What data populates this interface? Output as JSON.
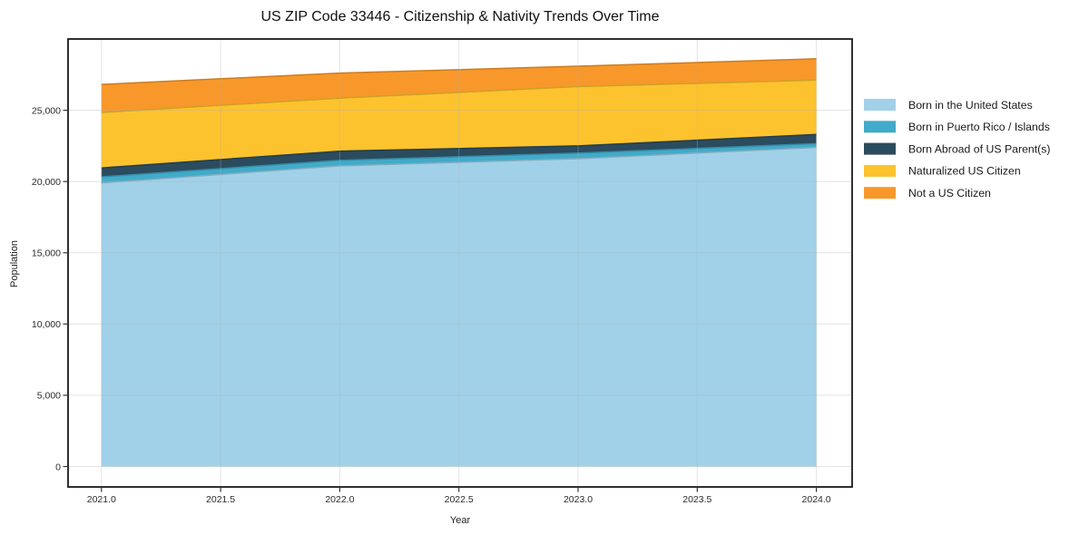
{
  "chart_data": {
    "type": "area",
    "stacked": true,
    "title": "US ZIP Code 33446 - Citizenship & Nativity Trends Over Time",
    "xlabel": "Year",
    "ylabel": "Population",
    "x": [
      2021,
      2022,
      2023,
      2024
    ],
    "series": [
      {
        "name": "Born in the United States",
        "color": "#a0d1e8",
        "values": [
          19900,
          21100,
          21600,
          22400
        ]
      },
      {
        "name": "Born in Puerto Rico / Islands",
        "color": "#41abc9",
        "values": [
          430,
          390,
          390,
          260
        ]
      },
      {
        "name": "Born Abroad of US Parent(s)",
        "color": "#2b4b5e",
        "values": [
          620,
          640,
          510,
          640
        ]
      },
      {
        "name": "Naturalized US Citizen",
        "color": "#fdc32e",
        "values": [
          3890,
          3720,
          4160,
          3820
        ]
      },
      {
        "name": "Not a US Citizen",
        "color": "#f8982a",
        "values": [
          1970,
          1760,
          1430,
          1490
        ]
      }
    ],
    "totals": [
      26810,
      27610,
      28090,
      28610
    ],
    "xlim": [
      2020.86,
      2024.15
    ],
    "ylim": [
      -1430,
      30000
    ],
    "x_ticks": [
      2021.0,
      2021.5,
      2022.0,
      2022.5,
      2023.0,
      2023.5,
      2024.0
    ],
    "x_tick_labels": [
      "2021.0",
      "2021.5",
      "2022.0",
      "2022.5",
      "2023.0",
      "2023.5",
      "2024.0"
    ],
    "y_ticks": [
      0,
      5000,
      10000,
      15000,
      20000,
      25000
    ],
    "y_tick_labels": [
      "0",
      "5,000",
      "10,000",
      "15,000",
      "20,000",
      "25,000"
    ],
    "grid": true,
    "legend_position": "right-outside",
    "colors": {
      "grid": "#b0b0b0",
      "spine": "#1a1a1a",
      "background": "#ffffff"
    }
  }
}
